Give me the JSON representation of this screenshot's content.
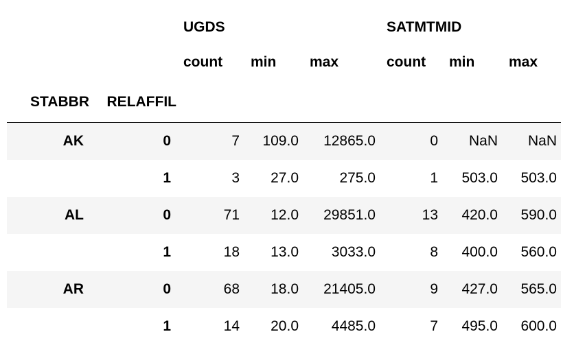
{
  "table": {
    "group_headers": [
      "UGDS",
      "SATMTMID"
    ],
    "stat_headers": [
      "count",
      "min",
      "max",
      "count",
      "min",
      "max"
    ],
    "index_names": [
      "STABBR",
      "RELAFFIL"
    ],
    "rows": [
      {
        "stabbr": "AK",
        "relaffil": "0",
        "cells": [
          "7",
          "109.0",
          "12865.0",
          "0",
          "NaN",
          "NaN"
        ]
      },
      {
        "stabbr": "",
        "relaffil": "1",
        "cells": [
          "3",
          "27.0",
          "275.0",
          "1",
          "503.0",
          "503.0"
        ]
      },
      {
        "stabbr": "AL",
        "relaffil": "0",
        "cells": [
          "71",
          "12.0",
          "29851.0",
          "13",
          "420.0",
          "590.0"
        ]
      },
      {
        "stabbr": "",
        "relaffil": "1",
        "cells": [
          "18",
          "13.0",
          "3033.0",
          "8",
          "400.0",
          "560.0"
        ]
      },
      {
        "stabbr": "AR",
        "relaffil": "0",
        "cells": [
          "68",
          "18.0",
          "21405.0",
          "9",
          "427.0",
          "565.0"
        ]
      },
      {
        "stabbr": "",
        "relaffil": "1",
        "cells": [
          "14",
          "20.0",
          "4485.0",
          "7",
          "495.0",
          "600.0"
        ]
      }
    ]
  }
}
